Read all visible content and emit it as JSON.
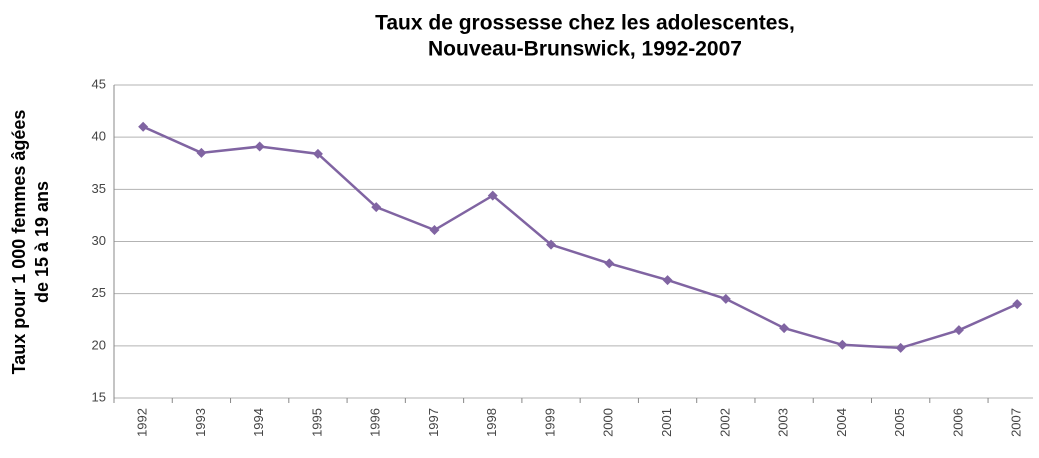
{
  "chart_data": {
    "type": "line",
    "title": [
      "Taux de grossesse chez les adolescentes,",
      "Nouveau-Brunswick, 1992-2007"
    ],
    "y_label": [
      "Taux pour 1 000 femmes âgées",
      "de 15 à 19 ans"
    ],
    "categories": [
      "1992",
      "1993",
      "1994",
      "1995",
      "1996",
      "1997",
      "1998",
      "1999",
      "2000",
      "2001",
      "2002",
      "2003",
      "2004",
      "2005",
      "2006",
      "2007"
    ],
    "series": [
      {
        "name": null,
        "color": "#8064a2",
        "values": [
          41.0,
          38.5,
          39.1,
          38.4,
          33.3,
          31.1,
          34.4,
          29.7,
          27.9,
          26.3,
          24.5,
          21.7,
          20.1,
          19.8,
          21.5,
          24.0
        ]
      }
    ],
    "ylim": [
      15,
      45
    ],
    "yticks": [
      15,
      20,
      25,
      30,
      35,
      40,
      45
    ],
    "grid": true
  }
}
